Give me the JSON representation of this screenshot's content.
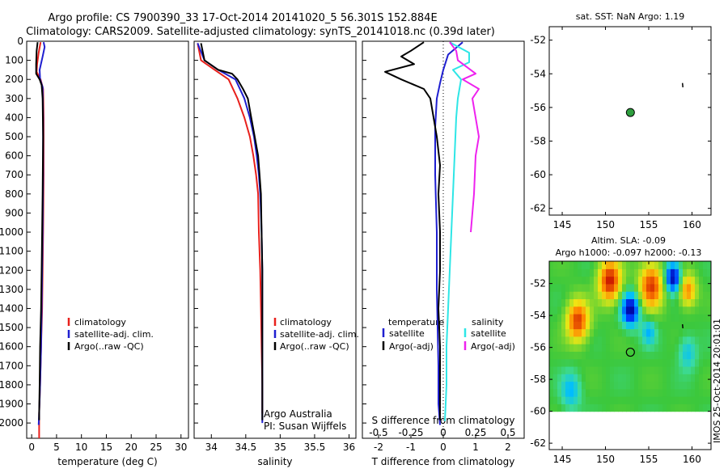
{
  "title_line1": "Argo profile: CS 7900390_33 17-Oct-2014 20141020_5 56.301S 152.884E",
  "title_line2": "Climatology: CARS2009. Satellite-adjusted climatology: synTS_20141018.nc (0.39d later)",
  "colors": {
    "climatology": "#e8201c",
    "satellite": "#1f1fd0",
    "argo": "#000000",
    "sal_satellite": "#2ee6e6",
    "sal_argo": "#ee22ee",
    "marker": "#2e9e3e"
  },
  "legend_main": [
    "climatology",
    "satellite-adj. clim.",
    "Argo(..raw -QC)"
  ],
  "legend_diff": {
    "temperature_header": "temperature",
    "salinity_header": "salinity",
    "items": [
      "satellite",
      "Argo(-adj)",
      "satellite",
      "Argo(-adj)"
    ]
  },
  "credit": {
    "line1": "Argo Australia",
    "line2": "PI: Susan Wijffels"
  },
  "sst_title": "sat. SST: NaN Argo: 1.19",
  "sla_title1": "Altim. SLA: -0.09",
  "sla_title2": "Argo h1000: -0.097 h2000: -0.13",
  "side_label": "IMOS 25-Oct-2014 20:01:01",
  "chart_data": [
    {
      "type": "line",
      "xlabel": "temperature (deg C)",
      "xlim": [
        -1,
        31.5
      ],
      "ylim": [
        0,
        2080
      ],
      "y_reversed": true,
      "xticks": [
        0,
        5,
        10,
        15,
        20,
        25,
        30
      ],
      "yticks": [
        0,
        100,
        200,
        300,
        400,
        500,
        600,
        700,
        800,
        900,
        1000,
        1100,
        1200,
        1300,
        1400,
        1500,
        1600,
        1700,
        1800,
        1900,
        2000
      ],
      "series": [
        {
          "name": "climatology",
          "color": "climatology",
          "points": [
            [
              1.8,
              5
            ],
            [
              1.4,
              60
            ],
            [
              1.1,
              120
            ],
            [
              1.0,
              160
            ],
            [
              1.8,
              200
            ],
            [
              2.3,
              250
            ],
            [
              2.4,
              400
            ],
            [
              2.4,
              700
            ],
            [
              2.3,
              1000
            ],
            [
              2.2,
              1200
            ],
            [
              2.1,
              1400
            ],
            [
              1.9,
              1600
            ],
            [
              1.7,
              1800
            ],
            [
              1.5,
              1950
            ],
            [
              1.5,
              2080
            ]
          ]
        },
        {
          "name": "satellite-adj. clim.",
          "color": "satellite",
          "points": [
            [
              2.4,
              5
            ],
            [
              2.6,
              30
            ],
            [
              2.2,
              80
            ],
            [
              1.6,
              150
            ],
            [
              1.7,
              200
            ],
            [
              2.2,
              240
            ],
            [
              2.3,
              400
            ],
            [
              2.3,
              700
            ],
            [
              2.2,
              1000
            ],
            [
              2.1,
              1200
            ],
            [
              2.0,
              1400
            ],
            [
              1.9,
              1600
            ],
            [
              1.7,
              1800
            ],
            [
              1.5,
              1950
            ],
            [
              1.4,
              2010
            ]
          ]
        },
        {
          "name": "Argo(..raw -QC)",
          "color": "argo",
          "points": [
            [
              1.2,
              5
            ],
            [
              1.0,
              50
            ],
            [
              0.9,
              120
            ],
            [
              0.9,
              170
            ],
            [
              1.6,
              200
            ],
            [
              2.0,
              230
            ],
            [
              2.2,
              300
            ],
            [
              2.3,
              500
            ],
            [
              2.2,
              800
            ],
            [
              2.1,
              1000
            ],
            [
              2.0,
              1200
            ],
            [
              1.9,
              1400
            ],
            [
              1.7,
              1600
            ],
            [
              1.6,
              1800
            ],
            [
              1.5,
              1950
            ],
            [
              1.5,
              1985
            ]
          ]
        }
      ]
    },
    {
      "type": "line",
      "xlabel": "salinity",
      "xlim": [
        33.75,
        36.1
      ],
      "ylim": [
        0,
        2080
      ],
      "y_reversed": true,
      "xticks": [
        34,
        34.5,
        35,
        35.5,
        36
      ],
      "series": [
        {
          "name": "climatology",
          "color": "climatology",
          "points": [
            [
              33.8,
              10
            ],
            [
              33.85,
              100
            ],
            [
              34.05,
              150
            ],
            [
              34.25,
              200
            ],
            [
              34.38,
              300
            ],
            [
              34.48,
              400
            ],
            [
              34.56,
              500
            ],
            [
              34.61,
              600
            ],
            [
              34.65,
              700
            ],
            [
              34.68,
              800
            ],
            [
              34.69,
              1000
            ],
            [
              34.71,
              1200
            ],
            [
              34.72,
              1400
            ],
            [
              34.73,
              1600
            ],
            [
              34.74,
              1800
            ],
            [
              34.74,
              1950
            ]
          ]
        },
        {
          "name": "satellite-adj. clim.",
          "color": "satellite",
          "points": [
            [
              33.8,
              10
            ],
            [
              33.9,
              100
            ],
            [
              34.1,
              150
            ],
            [
              34.35,
              200
            ],
            [
              34.48,
              300
            ],
            [
              34.56,
              400
            ],
            [
              34.62,
              500
            ],
            [
              34.66,
              600
            ],
            [
              34.69,
              700
            ],
            [
              34.71,
              800
            ],
            [
              34.72,
              900
            ],
            [
              34.73,
              1000
            ],
            [
              34.74,
              1200
            ],
            [
              34.74,
              1400
            ],
            [
              34.74,
              1600
            ],
            [
              34.74,
              1800
            ],
            [
              34.74,
              2000
            ]
          ]
        },
        {
          "name": "Argo(..raw -QC)",
          "color": "argo",
          "points": [
            [
              33.85,
              10
            ],
            [
              33.9,
              100
            ],
            [
              34.1,
              150
            ],
            [
              34.3,
              170
            ],
            [
              34.38,
              200
            ],
            [
              34.46,
              250
            ],
            [
              34.53,
              300
            ],
            [
              34.58,
              400
            ],
            [
              34.63,
              500
            ],
            [
              34.68,
              600
            ],
            [
              34.7,
              700
            ],
            [
              34.72,
              800
            ],
            [
              34.73,
              1000
            ],
            [
              34.74,
              1200
            ],
            [
              34.74,
              1400
            ],
            [
              34.74,
              1600
            ],
            [
              34.74,
              1800
            ],
            [
              34.74,
              1985
            ]
          ]
        }
      ]
    },
    {
      "type": "line",
      "xlabel": "T difference from climatology",
      "xlabel2": "S difference from climatology",
      "xlim": [
        -2.5,
        2.5
      ],
      "ylim": [
        0,
        2080
      ],
      "y_reversed": true,
      "xticks": [
        -2,
        -1,
        0,
        1,
        2
      ],
      "xticks2": [
        "-0.5",
        "-0.25",
        "0",
        "0.25",
        "0.5"
      ],
      "series": [
        {
          "name": "temperature satellite",
          "color": "satellite",
          "points": [
            [
              0.6,
              5
            ],
            [
              0.15,
              70
            ],
            [
              0.0,
              150
            ],
            [
              -0.1,
              220
            ],
            [
              -0.2,
              300
            ],
            [
              -0.25,
              450
            ],
            [
              -0.25,
              700
            ],
            [
              -0.2,
              1000
            ],
            [
              -0.2,
              1300
            ],
            [
              -0.15,
              1700
            ],
            [
              -0.15,
              1900
            ],
            [
              -0.1,
              2010
            ]
          ]
        },
        {
          "name": "temperature Argo(-adj)",
          "color": "argo",
          "points": [
            [
              -0.6,
              5
            ],
            [
              -1.0,
              50
            ],
            [
              -1.3,
              80
            ],
            [
              -0.9,
              120
            ],
            [
              -1.8,
              160
            ],
            [
              -1.3,
              200
            ],
            [
              -0.6,
              250
            ],
            [
              -0.4,
              300
            ],
            [
              -0.2,
              500
            ],
            [
              -0.1,
              650
            ],
            [
              -0.15,
              800
            ],
            [
              -0.1,
              1000
            ],
            [
              -0.1,
              1200
            ],
            [
              -0.15,
              1400
            ],
            [
              -0.1,
              1600
            ],
            [
              -0.1,
              1800
            ],
            [
              -0.1,
              1985
            ]
          ]
        },
        {
          "name": "salinity satellite",
          "color": "sal_satellite",
          "points": [
            [
              0.2,
              5
            ],
            [
              0.8,
              60
            ],
            [
              0.8,
              110
            ],
            [
              0.3,
              150
            ],
            [
              0.55,
              200
            ],
            [
              0.45,
              300
            ],
            [
              0.4,
              400
            ],
            [
              0.35,
              600
            ],
            [
              0.3,
              800
            ],
            [
              0.25,
              1000
            ],
            [
              0.2,
              1200
            ],
            [
              0.15,
              1400
            ],
            [
              0.1,
              1600
            ],
            [
              0.1,
              1800
            ],
            [
              0.05,
              1990
            ]
          ]
        },
        {
          "name": "salinity Argo(-adj)",
          "color": "sal_argo",
          "points": [
            [
              0.2,
              5
            ],
            [
              0.4,
              50
            ],
            [
              0.45,
              100
            ],
            [
              1.0,
              170
            ],
            [
              0.6,
              200
            ],
            [
              1.1,
              250
            ],
            [
              0.9,
              300
            ],
            [
              1.0,
              400
            ],
            [
              1.1,
              500
            ],
            [
              1.0,
              600
            ],
            [
              0.95,
              800
            ],
            [
              0.9,
              900
            ],
            [
              0.85,
              1000
            ]
          ]
        }
      ]
    },
    {
      "type": "scatter",
      "title": "sat. SST: NaN Argo: 1.19",
      "xlim": [
        143.5,
        162.2
      ],
      "ylim": [
        -62.4,
        -51.2
      ],
      "xticks": [
        145,
        150,
        155,
        160
      ],
      "yticks": [
        -52,
        -54,
        -56,
        -58,
        -60,
        -62
      ],
      "points": [
        {
          "x": 152.88,
          "y": -56.3,
          "color": "marker"
        }
      ]
    },
    {
      "type": "heatmap",
      "title": "Altim. SLA: -0.09",
      "subtitle": "Argo h1000: -0.097 h2000: -0.13",
      "xlim": [
        143.5,
        162.2
      ],
      "ylim": [
        -62.4,
        -50.6
      ],
      "xticks": [
        145,
        150,
        155,
        160
      ],
      "yticks": [
        -52,
        -54,
        -56,
        -58,
        -60,
        -62
      ],
      "data_extent": {
        "lon": [
          143.5,
          162.2
        ],
        "lat": [
          -60.0,
          -50.6
        ]
      },
      "blobs": [
        {
          "lon": 150.5,
          "lat": -51.8,
          "sign": 1,
          "amp": 1.0,
          "r": 1.3
        },
        {
          "lon": 155.3,
          "lat": -52.1,
          "sign": 1,
          "amp": 0.9,
          "r": 1.4
        },
        {
          "lon": 159.5,
          "lat": -52.4,
          "sign": 1,
          "amp": 0.7,
          "r": 1.0
        },
        {
          "lon": 146.8,
          "lat": -54.3,
          "sign": 1,
          "amp": 0.9,
          "r": 1.3
        },
        {
          "lon": 152.9,
          "lat": -53.6,
          "sign": -1,
          "amp": 1.0,
          "r": 1.0
        },
        {
          "lon": 157.8,
          "lat": -51.6,
          "sign": -1,
          "amp": 1.0,
          "r": 0.9
        },
        {
          "lon": 155.0,
          "lat": -55.0,
          "sign": -1,
          "amp": 0.4,
          "r": 0.8
        },
        {
          "lon": 146.0,
          "lat": -58.7,
          "sign": -1,
          "amp": 0.4,
          "r": 1.1
        },
        {
          "lon": 159.5,
          "lat": -56.3,
          "sign": -1,
          "amp": 0.35,
          "r": 1.0
        }
      ],
      "points": [
        {
          "x": 152.88,
          "y": -56.3
        }
      ]
    }
  ]
}
